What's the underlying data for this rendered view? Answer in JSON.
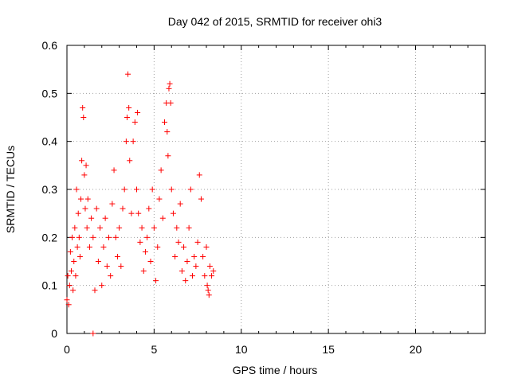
{
  "chart_data": {
    "type": "scatter",
    "title": "Day 042 of 2015, SRMTID for receiver ohi3",
    "xlabel": "GPS time / hours",
    "ylabel": "SRMTID / TECUs",
    "xlim": [
      0,
      24
    ],
    "ylim": [
      0,
      0.6
    ],
    "xticks": [
      0,
      5,
      10,
      15,
      20
    ],
    "yticks": [
      0,
      0.1,
      0.2,
      0.3,
      0.4,
      0.5,
      0.6
    ],
    "ytick_labels": [
      "0",
      "0.1",
      "0.2",
      "0.3",
      "0.4",
      "0.5",
      "0.6"
    ],
    "grid": true,
    "marker": "+",
    "color": "#ff0000",
    "series": [
      {
        "name": "SRMTID",
        "points": [
          [
            0.0,
            0.07
          ],
          [
            0.05,
            0.12
          ],
          [
            0.1,
            0.06
          ],
          [
            0.15,
            0.1
          ],
          [
            0.2,
            0.17
          ],
          [
            0.25,
            0.13
          ],
          [
            0.3,
            0.2
          ],
          [
            0.35,
            0.09
          ],
          [
            0.4,
            0.15
          ],
          [
            0.45,
            0.22
          ],
          [
            0.5,
            0.12
          ],
          [
            0.55,
            0.3
          ],
          [
            0.6,
            0.18
          ],
          [
            0.65,
            0.25
          ],
          [
            0.7,
            0.2
          ],
          [
            0.75,
            0.16
          ],
          [
            0.8,
            0.28
          ],
          [
            0.85,
            0.36
          ],
          [
            0.9,
            0.47
          ],
          [
            0.95,
            0.45
          ],
          [
            1.0,
            0.33
          ],
          [
            1.05,
            0.26
          ],
          [
            1.1,
            0.35
          ],
          [
            1.15,
            0.22
          ],
          [
            1.2,
            0.28
          ],
          [
            1.3,
            0.18
          ],
          [
            1.4,
            0.24
          ],
          [
            1.5,
            0.2
          ],
          [
            1.6,
            0.09
          ],
          [
            1.7,
            0.26
          ],
          [
            1.8,
            0.15
          ],
          [
            1.9,
            0.22
          ],
          [
            2.0,
            0.1
          ],
          [
            2.1,
            0.18
          ],
          [
            2.2,
            0.24
          ],
          [
            2.3,
            0.14
          ],
          [
            2.4,
            0.2
          ],
          [
            2.5,
            0.12
          ],
          [
            2.6,
            0.27
          ],
          [
            2.7,
            0.34
          ],
          [
            2.8,
            0.2
          ],
          [
            2.9,
            0.16
          ],
          [
            3.0,
            0.22
          ],
          [
            3.1,
            0.14
          ],
          [
            3.2,
            0.26
          ],
          [
            3.3,
            0.3
          ],
          [
            3.4,
            0.4
          ],
          [
            3.45,
            0.45
          ],
          [
            3.5,
            0.54
          ],
          [
            3.55,
            0.47
          ],
          [
            3.6,
            0.36
          ],
          [
            3.7,
            0.25
          ],
          [
            3.8,
            0.4
          ],
          [
            3.9,
            0.44
          ],
          [
            4.0,
            0.3
          ],
          [
            4.05,
            0.46
          ],
          [
            4.1,
            0.25
          ],
          [
            4.2,
            0.19
          ],
          [
            4.3,
            0.22
          ],
          [
            4.4,
            0.13
          ],
          [
            4.5,
            0.17
          ],
          [
            4.6,
            0.2
          ],
          [
            4.7,
            0.26
          ],
          [
            4.8,
            0.15
          ],
          [
            4.9,
            0.3
          ],
          [
            5.0,
            0.22
          ],
          [
            5.1,
            0.11
          ],
          [
            5.2,
            0.18
          ],
          [
            5.3,
            0.28
          ],
          [
            5.4,
            0.34
          ],
          [
            5.5,
            0.24
          ],
          [
            5.6,
            0.44
          ],
          [
            5.7,
            0.48
          ],
          [
            5.75,
            0.42
          ],
          [
            5.8,
            0.37
          ],
          [
            5.85,
            0.51
          ],
          [
            5.9,
            0.52
          ],
          [
            5.95,
            0.48
          ],
          [
            6.0,
            0.3
          ],
          [
            6.1,
            0.25
          ],
          [
            6.2,
            0.16
          ],
          [
            6.3,
            0.22
          ],
          [
            6.4,
            0.19
          ],
          [
            6.5,
            0.27
          ],
          [
            6.6,
            0.13
          ],
          [
            6.7,
            0.18
          ],
          [
            6.8,
            0.11
          ],
          [
            6.9,
            0.15
          ],
          [
            7.0,
            0.22
          ],
          [
            7.1,
            0.3
          ],
          [
            7.2,
            0.12
          ],
          [
            7.3,
            0.16
          ],
          [
            7.4,
            0.14
          ],
          [
            7.5,
            0.19
          ],
          [
            7.6,
            0.33
          ],
          [
            7.7,
            0.28
          ],
          [
            7.8,
            0.16
          ],
          [
            7.9,
            0.12
          ],
          [
            8.0,
            0.18
          ],
          [
            8.05,
            0.1
          ],
          [
            8.1,
            0.09
          ],
          [
            8.15,
            0.08
          ],
          [
            8.2,
            0.14
          ],
          [
            8.3,
            0.12
          ],
          [
            8.4,
            0.13
          ],
          [
            1.5,
            0.0
          ]
        ]
      }
    ]
  }
}
